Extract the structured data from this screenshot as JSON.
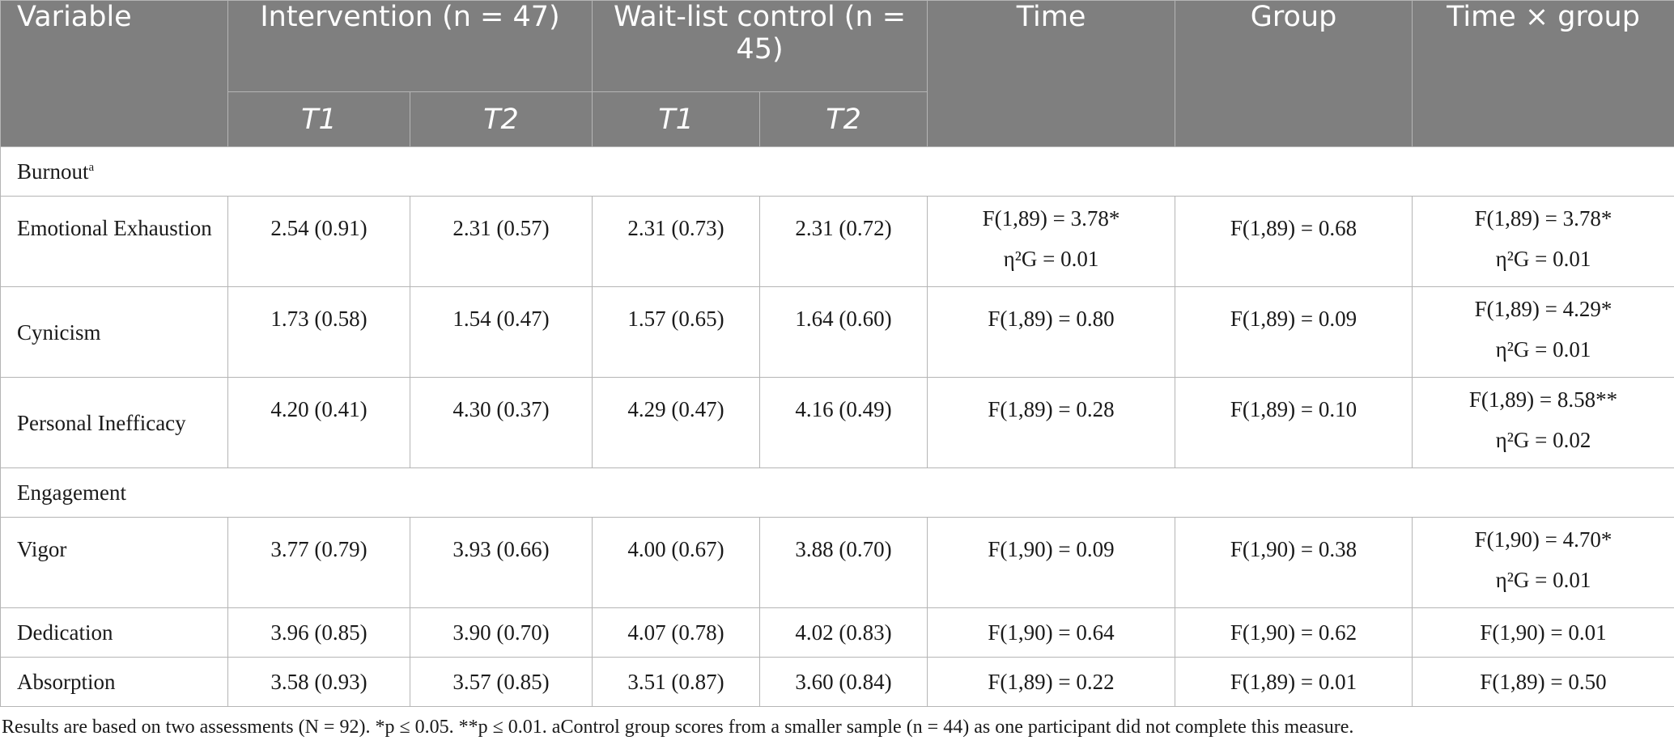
{
  "header": {
    "variable": "Variable",
    "intervention": "Intervention (n = 47)",
    "waitlist": "Wait-list control (n = 45)",
    "time": "Time",
    "group": "Group",
    "interaction": "Time × group",
    "t1": "T1",
    "t2": "T2"
  },
  "sections": [
    {
      "label": "Burnout",
      "sup": "a",
      "rows": [
        {
          "name": "Emotional Exhaustion",
          "i_t1": "2.54 (0.91)",
          "i_t2": "2.31 (0.57)",
          "w_t1": "2.31 (0.73)",
          "w_t2": "2.31 (0.72)",
          "time": "F(1,89) = 3.78*",
          "time_eta": "η²G = 0.01",
          "group": "F(1,89) = 0.68",
          "inter": "F(1,89) = 3.78*",
          "inter_eta": "η²G = 0.01"
        },
        {
          "name": "Cynicism",
          "i_t1": "1.73 (0.58)",
          "i_t2": "1.54 (0.47)",
          "w_t1": "1.57 (0.65)",
          "w_t2": "1.64 (0.60)",
          "time": "F(1,89) = 0.80",
          "group": "F(1,89) = 0.09",
          "inter": "F(1,89) = 4.29*",
          "inter_eta": "η²G = 0.01"
        },
        {
          "name": "Personal Inefficacy",
          "i_t1": "4.20 (0.41)",
          "i_t2": "4.30 (0.37)",
          "w_t1": "4.29 (0.47)",
          "w_t2": "4.16 (0.49)",
          "time": "F(1,89) = 0.28",
          "group": "F(1,89) = 0.10",
          "inter": "F(1,89) = 8.58**",
          "inter_eta": "η²G = 0.02"
        }
      ]
    },
    {
      "label": "Engagement",
      "rows": [
        {
          "name": "Vigor",
          "i_t1": "3.77 (0.79)",
          "i_t2": "3.93 (0.66)",
          "w_t1": "4.00 (0.67)",
          "w_t2": "3.88 (0.70)",
          "time": "F(1,90) = 0.09",
          "group": "F(1,90) = 0.38",
          "inter": "F(1,90) = 4.70*",
          "inter_eta": "η²G = 0.01"
        },
        {
          "name": "Dedication",
          "i_t1": "3.96 (0.85)",
          "i_t2": "3.90 (0.70)",
          "w_t1": "4.07 (0.78)",
          "w_t2": "4.02 (0.83)",
          "time": "F(1,90) = 0.64",
          "group": "F(1,90) = 0.62",
          "inter": "F(1,90) = 0.01"
        },
        {
          "name": "Absorption",
          "i_t1": "3.58 (0.93)",
          "i_t2": "3.57 (0.85)",
          "w_t1": "3.51 (0.87)",
          "w_t2": "3.60 (0.84)",
          "time": "F(1,89) = 0.22",
          "group": "F(1,89) = 0.01",
          "inter": "F(1,89) = 0.50"
        }
      ]
    }
  ],
  "footnote": "Results are based on two assessments (N = 92). *p ≤ 0.05. **p ≤ 0.01. aControl group scores from a smaller sample (n = 44) as one participant did not complete this measure."
}
